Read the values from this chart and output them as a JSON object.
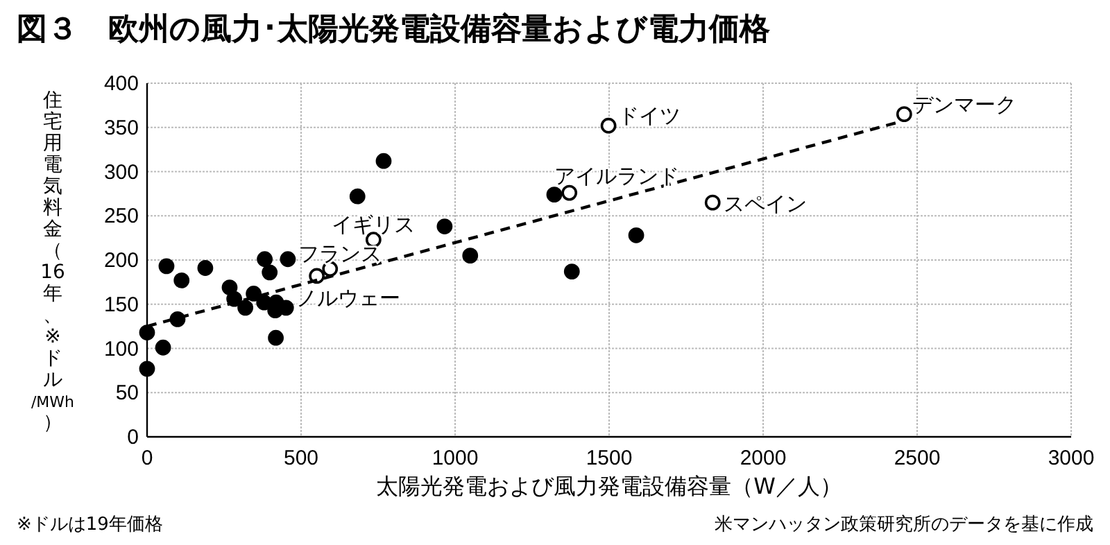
{
  "chart_data": {
    "type": "scatter",
    "title": "図３　欧州の風力･太陽光発電設備容量および電力価格",
    "xlabel": "太陽光発電および風力発電設備容量（W／人）",
    "ylabel": "住宅用電気料金（16年、※ドル/MWh）",
    "xlim": [
      0,
      3000
    ],
    "xticks": [
      0,
      500,
      1000,
      1500,
      2000,
      2500,
      3000
    ],
    "ylim": [
      0,
      400
    ],
    "yticks": [
      0,
      50,
      100,
      150,
      200,
      250,
      300,
      350,
      400
    ],
    "grid": true,
    "marker": "circle",
    "series": [
      {
        "color": "#000000",
        "x": [
          0,
          0,
          52,
          63,
          99,
          112,
          189,
          268,
          283,
          319,
          346,
          382,
          380,
          398,
          419,
          416,
          418,
          451,
          457,
          683,
          768,
          966,
          1049,
          1322,
          1379,
          1588
        ],
        "values": [
          118,
          77,
          101,
          193,
          133,
          177,
          191,
          169,
          156,
          146,
          162,
          201,
          152,
          186,
          152,
          143,
          112,
          146,
          201,
          272,
          312,
          238,
          205,
          274,
          187,
          228
        ]
      },
      {
        "color": "#ffffff",
        "x": [
          551,
          594,
          735,
          1371,
          1498,
          1836,
          2458
        ],
        "values": [
          182,
          190,
          223,
          276,
          352,
          265,
          365
        ]
      },
      {
        "type": "line",
        "color": "#000000",
        "line_style": "dashed",
        "marker": "none",
        "x": [
          0,
          2440
        ],
        "values": [
          125,
          356
        ]
      }
    ],
    "annotations": [
      {
        "text": "ノルウェー",
        "x": 551,
        "y": 182
      },
      {
        "text": "フランス",
        "x": 594,
        "y": 190
      },
      {
        "text": "イギリス",
        "x": 735,
        "y": 223
      },
      {
        "text": "アイルランド",
        "x": 1371,
        "y": 276
      },
      {
        "text": "ドイツ",
        "x": 1498,
        "y": 352
      },
      {
        "text": "スペイン",
        "x": 1836,
        "y": 265
      },
      {
        "text": "デンマーク",
        "x": 2458,
        "y": 365
      },
      "※ドルは19年価格",
      "米マンハッタン政策研究所のデータを基に作成"
    ]
  }
}
